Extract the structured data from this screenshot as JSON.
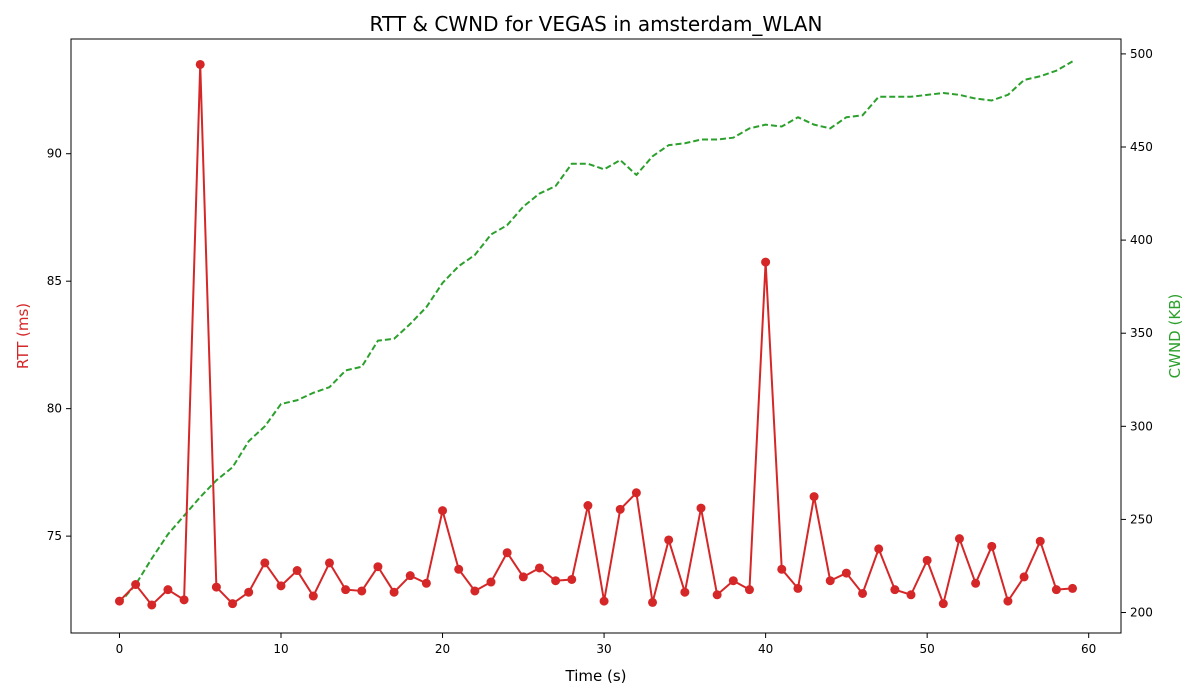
{
  "chart_data": {
    "type": "line",
    "title": "RTT & CWND for VEGAS in amsterdam_WLAN",
    "xlabel": "Time (s)",
    "ylabel_left": "RTT (ms)",
    "ylabel_right": "CWND (KB)",
    "xlim": [
      -3,
      62
    ],
    "ylim_left": [
      71.2,
      94.5
    ],
    "ylim_right": [
      189,
      508
    ],
    "x_ticks": [
      0,
      10,
      20,
      30,
      40,
      50,
      60
    ],
    "y_ticks_left": [
      75,
      80,
      85,
      90
    ],
    "y_ticks_right": [
      200,
      250,
      300,
      350,
      400,
      450,
      500
    ],
    "grid": false,
    "legend": "none",
    "x": [
      0,
      1,
      2,
      3,
      4,
      5,
      6,
      7,
      8,
      9,
      10,
      11,
      12,
      13,
      14,
      15,
      16,
      17,
      18,
      19,
      20,
      21,
      22,
      23,
      24,
      25,
      26,
      27,
      28,
      29,
      30,
      31,
      32,
      33,
      34,
      35,
      36,
      37,
      38,
      39,
      40,
      41,
      42,
      43,
      44,
      45,
      46,
      47,
      48,
      49,
      50,
      51,
      52,
      53,
      54,
      55,
      56,
      57,
      58,
      59
    ],
    "series": [
      {
        "axis": "left",
        "color": "#d62728",
        "style": "solid",
        "marker": "circle",
        "values": [
          72.45,
          73.1,
          72.3,
          72.9,
          72.5,
          93.5,
          73.0,
          72.35,
          72.8,
          73.95,
          73.05,
          73.65,
          72.65,
          73.95,
          72.9,
          72.85,
          73.8,
          72.8,
          73.45,
          73.15,
          76.0,
          73.7,
          72.85,
          73.2,
          74.35,
          73.4,
          73.75,
          73.25,
          73.3,
          76.2,
          72.45,
          76.05,
          76.7,
          72.4,
          74.85,
          72.8,
          76.1,
          72.7,
          73.25,
          72.9,
          85.75,
          73.7,
          72.95,
          76.55,
          73.25,
          73.55,
          72.75,
          74.5,
          72.9,
          72.7,
          74.05,
          72.35,
          74.9,
          73.15,
          74.6,
          72.45,
          73.4,
          74.8,
          72.9,
          72.95
        ]
      },
      {
        "axis": "right",
        "color": "#2ca02c",
        "style": "dashed",
        "marker": "none",
        "values": [
          205,
          215,
          229,
          242,
          252,
          262,
          271,
          278,
          292,
          300,
          312,
          314,
          318,
          321,
          330,
          332,
          346,
          347,
          355,
          364,
          377,
          386,
          392,
          403,
          408,
          418,
          425,
          429,
          441,
          441,
          438,
          443,
          435,
          445,
          451,
          452,
          454,
          454,
          455,
          460,
          462,
          461,
          466,
          462,
          460,
          466,
          467,
          477,
          477,
          477,
          478,
          479,
          478,
          476,
          475,
          478,
          486,
          488,
          491,
          496
        ]
      }
    ]
  }
}
